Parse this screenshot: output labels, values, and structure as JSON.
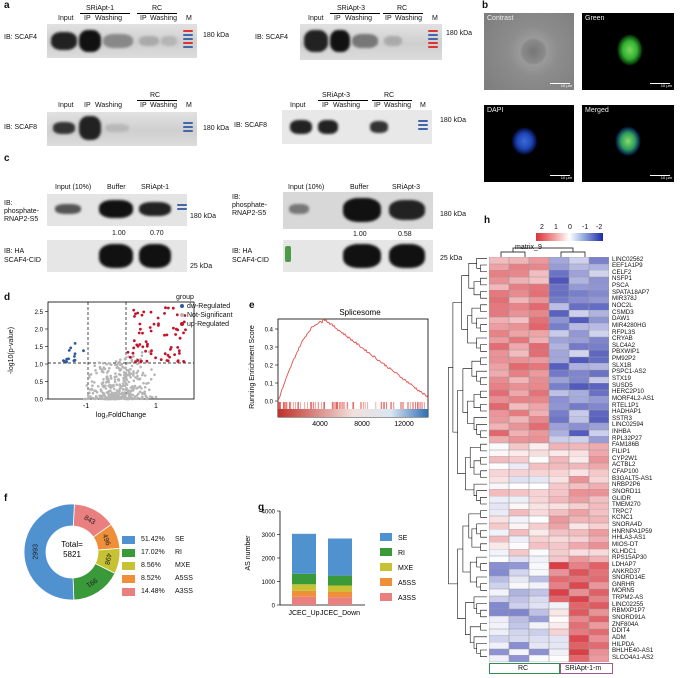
{
  "panels": {
    "a": "a",
    "b": "b",
    "c": "c",
    "d": "d",
    "e": "e",
    "f": "f",
    "g": "g",
    "h": "h"
  },
  "panel_a": {
    "ib_scaf4": "IB: SCAF4",
    "ib_scaf8": "IB: SCAF8",
    "input": "Input",
    "ip": "IP",
    "washing": "Washing",
    "rc": "RC",
    "m": "M",
    "sriapt1": "SRiApt-1",
    "sriapt3": "SRiApt-3",
    "kda180": "180 kDa"
  },
  "panel_b": {
    "contrast": "Contrast",
    "green": "Green",
    "dapi": "DAPI",
    "merged": "Merged",
    "scale": "10 μm"
  },
  "panel_c": {
    "input10": "Input (10%)",
    "buffer": "Buffer",
    "sriapt1": "SRiApt-1",
    "sriapt3": "SRiApt-3",
    "ib_rnap_1": "IB:",
    "ib_rnap_2": "phosphate-",
    "ib_rnap_3": "RNAP2-S5",
    "ib_ha_1": "IB: HA",
    "ib_ha_2": "SCAF4-CID",
    "kda180": "180 kDa",
    "kda25": "25 kDa",
    "left_ratio_buffer": "1.00",
    "left_ratio_apt": "0.70",
    "right_ratio_buffer": "1.00",
    "right_ratio_apt": "0.58"
  },
  "panel_d": {
    "xlabel": "log₂FoldChange",
    "ylabel": "-log10(p-value)",
    "legend_title": "group",
    "legend": [
      "dw-Regulated",
      "Not-Significant",
      "up-Regulated"
    ],
    "colors": {
      "down": "#2b5b9a",
      "ns": "#b5b5b5",
      "up": "#c0142a"
    },
    "xticks": [
      "-1",
      "1"
    ],
    "yticks": [
      "0.0",
      "0.5",
      "1.0",
      "1.5",
      "2.0",
      "2.5"
    ]
  },
  "panel_e": {
    "title": "Splicesome",
    "ylabel": "Running Enrichment Score",
    "yticks": [
      "0.0",
      "0.1",
      "0.2",
      "0.3",
      "0.4"
    ],
    "xticks": [
      "4000",
      "8000",
      "12000"
    ]
  },
  "chart_data": [
    {
      "type": "pie",
      "panel": "f",
      "center_label": "Total=",
      "center_value": "5821",
      "labels": [
        "SE",
        "RI",
        "MXE",
        "A5SS",
        "A3SS"
      ],
      "values": [
        2993,
        991,
        498,
        496,
        843
      ],
      "value_labels": [
        "2993",
        "991",
        "498",
        "496",
        "843"
      ],
      "percent_labels": [
        "51.42%",
        "17.02%",
        "8.56%",
        "8.52%",
        "14.48%"
      ],
      "colors": [
        "#4f92cf",
        "#3a9a3a",
        "#c6c233",
        "#ef8f3a",
        "#e97f7f"
      ]
    },
    {
      "type": "bar",
      "panel": "g",
      "stacked": true,
      "categories": [
        "JCEC_Up",
        "JCEC_Down"
      ],
      "ylabel": "AS number",
      "yticks": [
        "0",
        "1000",
        "2000",
        "3000",
        "4000"
      ],
      "ylim": [
        0,
        4000
      ],
      "series": [
        {
          "name": "A3SS",
          "values": [
            350,
            330
          ],
          "color": "#e97f7f"
        },
        {
          "name": "A5SS",
          "values": [
            250,
            240
          ],
          "color": "#ef8f3a"
        },
        {
          "name": "MXE",
          "values": [
            280,
            260
          ],
          "color": "#c6c233"
        },
        {
          "name": "RI",
          "values": [
            450,
            420
          ],
          "color": "#3a9a3a"
        },
        {
          "name": "SE",
          "values": [
            1700,
            1580
          ],
          "color": "#4f92cf"
        }
      ],
      "legend": [
        "SE",
        "RI",
        "MXE",
        "A5SS",
        "A3SS"
      ]
    }
  ],
  "panel_h": {
    "legend_title": "matrix_9",
    "legend_ticks": [
      "2",
      "1",
      "0",
      "-1",
      "-2"
    ],
    "group_rc": "RC",
    "group_apt": "SRiApt-1-m",
    "genes": [
      "LINC02562",
      "EEF1A1P9",
      "CELF2",
      "NSFP1",
      "PSCA",
      "SPATA18AP7",
      "MIR378J",
      "NOC2L",
      "CSMD3",
      "DAW1",
      "MIR4280HG",
      "RFPL3S",
      "CRYAB",
      "SLC4A2",
      "PBXWIP1",
      "PM92P2",
      "SLX1B",
      "PSPC1-AS2",
      "STX19",
      "SUSD5",
      "HERC2P10",
      "MORF4L2-AS1",
      "RTEL1P1",
      "HADHAP1",
      "SSTR3",
      "LINC02594",
      "INHBA",
      "RPL32P27",
      "FAM186B",
      "FILIP1",
      "CYP2W1",
      "ACTBL2",
      "CFAP100",
      "B3GALT5-AS1",
      "NRBP2P6",
      "SNORD11",
      "GLIDR",
      "TMEM270",
      "TRPC7",
      "KCNC1",
      "SNORA4D",
      "HNRNPA1P59",
      "HHLA3-AS1",
      "MIOS-DT",
      "KLHDC1",
      "RPS15AP30",
      "LDHAP7",
      "ANKRD37",
      "SNORD14E",
      "GNRHR",
      "MORN5",
      "TRPM2-AS",
      "LINC02255",
      "RBMXP1P7",
      "SNORD91A",
      "ZNF804A",
      "DDIT4",
      "ADM",
      "HILPDA",
      "BHLHE40-AS1",
      "SLCO4A1-AS2"
    ]
  }
}
